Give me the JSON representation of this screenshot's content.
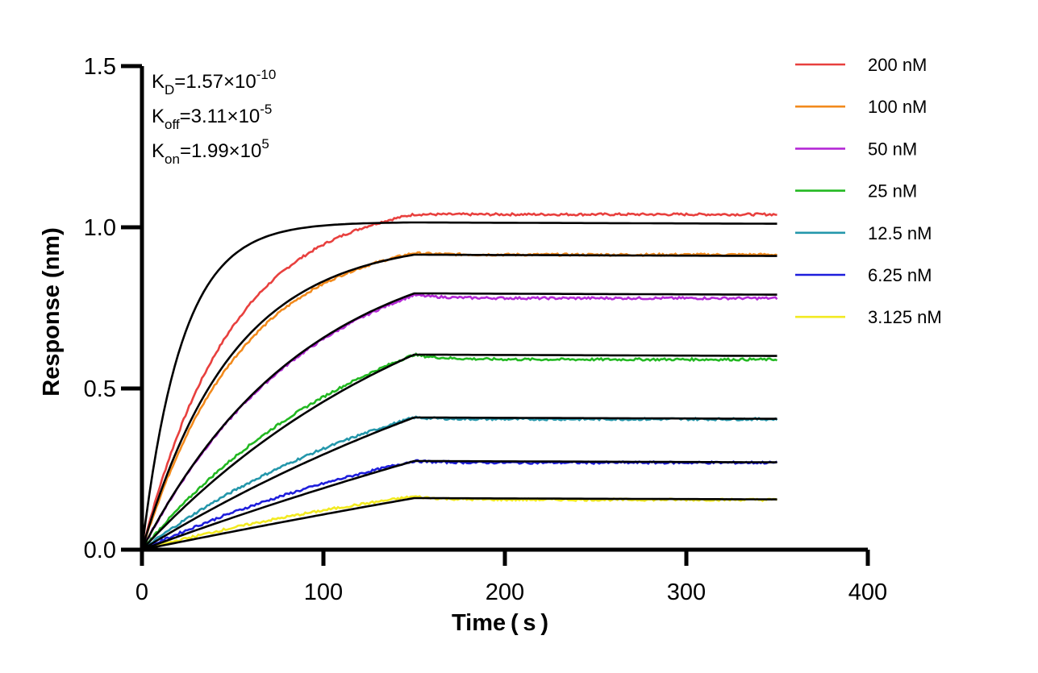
{
  "chart_data": {
    "type": "line",
    "title": "",
    "xlabel": "Time ( s )",
    "ylabel": "Response (nm)",
    "xlim": [
      0,
      400
    ],
    "ylim": [
      0,
      1.5
    ],
    "x_ticks": [
      "0",
      "100",
      "200",
      "300",
      "400"
    ],
    "y_ticks": [
      "0.0",
      "0.5",
      "1.0",
      "1.5"
    ],
    "grid": false,
    "legend_position": "right",
    "association_end": 150,
    "dissociation_end": 350,
    "annotations": [
      {
        "base": "K",
        "sub": "D",
        "text": "=1.57×10",
        "sup": "-10"
      },
      {
        "base": "K",
        "sub": "off",
        "text": "=3.11×10",
        "sup": "-5"
      },
      {
        "base": "K",
        "sub": "on",
        "text": "=1.99×10",
        "sup": "5"
      }
    ],
    "series": [
      {
        "name": "200 nM",
        "color": "#e8403e",
        "plateau": 1.04,
        "peak": 1.04,
        "tau": 50,
        "fit_plateau": 1.015,
        "fit_tau": 22
      },
      {
        "name": "100 nM",
        "color": "#f28a1c",
        "plateau": 0.915,
        "peak": 0.92,
        "tau": 55,
        "fit_plateau": 0.915,
        "fit_tau": 50
      },
      {
        "name": "50 nM",
        "color": "#b429d6",
        "plateau": 0.78,
        "peak": 0.79,
        "tau": 90,
        "fit_plateau": 0.795,
        "fit_tau": 90
      },
      {
        "name": "25 nM",
        "color": "#22b821",
        "plateau": 0.59,
        "peak": 0.605,
        "tau": 130,
        "fit_plateau": 0.605,
        "fit_tau": 170
      },
      {
        "name": "12.5 nM",
        "color": "#2497ab",
        "plateau": 0.405,
        "peak": 0.41,
        "tau": 160,
        "fit_plateau": 0.41,
        "fit_tau": 300
      },
      {
        "name": "6.25 nM",
        "color": "#1e1edc",
        "plateau": 0.27,
        "peak": 0.275,
        "tau": 200,
        "fit_plateau": 0.275,
        "fit_tau": 600
      },
      {
        "name": "3.125 nM",
        "color": "#f2ea22",
        "plateau": 0.155,
        "peak": 0.165,
        "tau": 220,
        "fit_plateau": 0.16,
        "fit_tau": 1000
      }
    ],
    "fit_color": "#000000"
  }
}
